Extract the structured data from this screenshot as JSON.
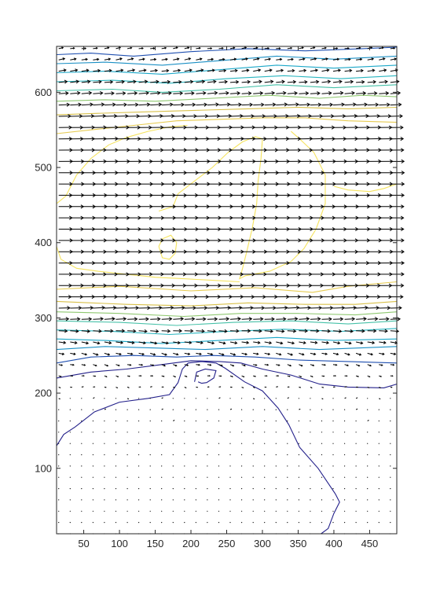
{
  "chart_data": {
    "type": "contour-quiver",
    "title": "",
    "xlabel": "",
    "ylabel": "",
    "xlim": [
      12,
      488
    ],
    "ylim": [
      13,
      661
    ],
    "x_ticks": [
      50,
      100,
      150,
      200,
      250,
      300,
      350,
      400,
      450
    ],
    "y_ticks": [
      100,
      200,
      300,
      400,
      500,
      600
    ],
    "x_tick_labels": [
      "50",
      "100",
      "150",
      "200",
      "250",
      "300",
      "350",
      "400",
      "450"
    ],
    "y_tick_labels": [
      "100",
      "200",
      "300",
      "400",
      "500",
      "600"
    ],
    "grid": false,
    "legend": "none",
    "colors": {
      "axes": "#262626",
      "arrows": "#000000",
      "contour_low": "#23208a",
      "contour_mid": "#1aa7c8",
      "contour_midhigh": "#46c1a8",
      "contour_high": "#d8c04a",
      "contour_top": "#f5e35e"
    },
    "contours": [
      {
        "level_rank": 1,
        "color": "#23208a",
        "points": [
          [
            12,
            130
          ],
          [
            22,
            145
          ],
          [
            38,
            155
          ],
          [
            65,
            175
          ],
          [
            100,
            188
          ],
          [
            140,
            193
          ],
          [
            170,
            198
          ],
          [
            182,
            214
          ],
          [
            188,
            232
          ],
          [
            196,
            240
          ],
          [
            215,
            242
          ],
          [
            235,
            240
          ],
          [
            248,
            233
          ],
          [
            275,
            215
          ],
          [
            300,
            203
          ],
          [
            322,
            180
          ],
          [
            337,
            158
          ],
          [
            352,
            128
          ],
          [
            378,
            100
          ],
          [
            402,
            66
          ],
          [
            408,
            55
          ],
          [
            400,
            40
          ],
          [
            392,
            20
          ],
          [
            382,
            13
          ]
        ]
      },
      {
        "level_rank": 1,
        "color": "#23208a",
        "points": [
          [
            205,
            215
          ],
          [
            208,
            228
          ],
          [
            220,
            232
          ],
          [
            235,
            230
          ],
          [
            232,
            220
          ],
          [
            222,
            214
          ],
          [
            215,
            213
          ],
          [
            210,
            215
          ]
        ]
      },
      {
        "level_rank": 1,
        "color": "#23208a",
        "points": [
          [
            12,
            220
          ],
          [
            60,
            228
          ],
          [
            110,
            232
          ],
          [
            160,
            238
          ],
          [
            200,
            243
          ],
          [
            240,
            242
          ],
          [
            270,
            240
          ],
          [
            300,
            232
          ],
          [
            340,
            224
          ],
          [
            380,
            212
          ],
          [
            420,
            208
          ],
          [
            470,
            207
          ],
          [
            488,
            212
          ]
        ]
      },
      {
        "level_rank": 2,
        "color": "#1f4fb0",
        "points": [
          [
            12,
            240
          ],
          [
            60,
            248
          ],
          [
            120,
            250
          ],
          [
            180,
            248
          ],
          [
            230,
            250
          ],
          [
            290,
            248
          ],
          [
            350,
            244
          ],
          [
            420,
            242
          ],
          [
            488,
            240
          ]
        ]
      },
      {
        "level_rank": 3,
        "color": "#1a8fc4",
        "points": [
          [
            12,
            258
          ],
          [
            80,
            262
          ],
          [
            150,
            260
          ],
          [
            220,
            258
          ],
          [
            300,
            262
          ],
          [
            380,
            258
          ],
          [
            488,
            262
          ]
        ]
      },
      {
        "level_rank": 4,
        "color": "#1aa7c8",
        "points": [
          [
            12,
            272
          ],
          [
            80,
            270
          ],
          [
            160,
            266
          ],
          [
            240,
            270
          ],
          [
            320,
            274
          ],
          [
            400,
            270
          ],
          [
            488,
            272
          ]
        ]
      },
      {
        "level_rank": 5,
        "color": "#2ab6c0",
        "points": [
          [
            12,
            284
          ],
          [
            90,
            282
          ],
          [
            170,
            278
          ],
          [
            250,
            282
          ],
          [
            330,
            285
          ],
          [
            410,
            282
          ],
          [
            488,
            286
          ]
        ]
      },
      {
        "level_rank": 6,
        "color": "#46c1a8",
        "points": [
          [
            12,
            296
          ],
          [
            100,
            294
          ],
          [
            180,
            290
          ],
          [
            260,
            294
          ],
          [
            340,
            296
          ],
          [
            420,
            292
          ],
          [
            488,
            296
          ]
        ]
      },
      {
        "level_rank": 7,
        "color": "#8fc870",
        "points": [
          [
            12,
            308
          ],
          [
            100,
            306
          ],
          [
            190,
            302
          ],
          [
            270,
            306
          ],
          [
            350,
            306
          ],
          [
            430,
            304
          ],
          [
            488,
            308
          ]
        ]
      },
      {
        "level_rank": 8,
        "color": "#d8c04a",
        "points": [
          [
            12,
            322
          ],
          [
            110,
            318
          ],
          [
            200,
            316
          ],
          [
            280,
            320
          ],
          [
            360,
            318
          ],
          [
            430,
            318
          ],
          [
            488,
            322
          ]
        ]
      },
      {
        "level_rank": 9,
        "color": "#e6cb52",
        "points": [
          [
            12,
            338
          ],
          [
            100,
            342
          ],
          [
            200,
            336
          ],
          [
            290,
            340
          ],
          [
            370,
            334
          ],
          [
            420,
            342
          ],
          [
            488,
            348
          ]
        ]
      },
      {
        "level_rank": 10,
        "color": "#f5e35e",
        "points": [
          [
            12,
            452
          ],
          [
            25,
            462
          ],
          [
            40,
            490
          ],
          [
            60,
            512
          ],
          [
            85,
            530
          ],
          [
            110,
            540
          ],
          [
            140,
            548
          ],
          [
            170,
            554
          ],
          [
            195,
            556
          ]
        ]
      },
      {
        "level_rank": 10,
        "color": "#f5e35e",
        "points": [
          [
            155,
            442
          ],
          [
            175,
            448
          ],
          [
            182,
            465
          ],
          [
            205,
            482
          ],
          [
            230,
            500
          ],
          [
            252,
            520
          ],
          [
            272,
            534
          ],
          [
            290,
            541
          ],
          [
            300,
            538
          ],
          [
            298,
            512
          ],
          [
            294,
            482
          ],
          [
            292,
            452
          ],
          [
            286,
            420
          ],
          [
            278,
            388
          ],
          [
            272,
            365
          ],
          [
            268,
            352
          ],
          [
            276,
            356
          ],
          [
            310,
            362
          ],
          [
            340,
            375
          ],
          [
            358,
            392
          ],
          [
            375,
            418
          ],
          [
            388,
            452
          ],
          [
            388,
            490
          ],
          [
            372,
            520
          ],
          [
            352,
            538
          ],
          [
            340,
            548
          ]
        ]
      },
      {
        "level_rank": 10,
        "color": "#f5e35e",
        "points": [
          [
            155,
            395
          ],
          [
            160,
            405
          ],
          [
            172,
            410
          ],
          [
            180,
            400
          ],
          [
            178,
            386
          ],
          [
            170,
            378
          ],
          [
            160,
            380
          ],
          [
            155,
            395
          ]
        ]
      },
      {
        "level_rank": 10,
        "color": "#f5e35e",
        "points": [
          [
            12,
            395
          ],
          [
            18,
            378
          ],
          [
            40,
            366
          ],
          [
            70,
            362
          ],
          [
            110,
            358
          ],
          [
            150,
            354
          ],
          [
            190,
            352
          ],
          [
            230,
            350
          ],
          [
            268,
            348
          ]
        ]
      },
      {
        "level_rank": 10,
        "color": "#f5e35e",
        "points": [
          [
            400,
            475
          ],
          [
            420,
            470
          ],
          [
            450,
            468
          ],
          [
            470,
            472
          ],
          [
            488,
            478
          ]
        ]
      },
      {
        "level_rank": 9,
        "color": "#e6cb52",
        "points": [
          [
            12,
            545
          ],
          [
            60,
            550
          ],
          [
            120,
            556
          ],
          [
            180,
            562
          ],
          [
            240,
            564
          ],
          [
            300,
            566
          ],
          [
            360,
            566
          ],
          [
            420,
            562
          ],
          [
            488,
            560
          ]
        ]
      },
      {
        "level_rank": 8,
        "color": "#d8c04a",
        "points": [
          [
            12,
            570
          ],
          [
            70,
            572
          ],
          [
            140,
            574
          ],
          [
            210,
            576
          ],
          [
            280,
            578
          ],
          [
            350,
            580
          ],
          [
            420,
            578
          ],
          [
            488,
            580
          ]
        ]
      },
      {
        "level_rank": 7,
        "color": "#8fc870",
        "points": [
          [
            12,
            588
          ],
          [
            80,
            590
          ],
          [
            150,
            588
          ],
          [
            230,
            592
          ],
          [
            310,
            596
          ],
          [
            380,
            592
          ],
          [
            440,
            596
          ],
          [
            488,
            594
          ]
        ]
      },
      {
        "level_rank": 6,
        "color": "#46c1a8",
        "points": [
          [
            12,
            602
          ],
          [
            90,
            604
          ],
          [
            160,
            600
          ],
          [
            240,
            604
          ],
          [
            320,
            610
          ],
          [
            400,
            606
          ],
          [
            488,
            610
          ]
        ]
      },
      {
        "level_rank": 5,
        "color": "#2ab6c0",
        "points": [
          [
            12,
            614
          ],
          [
            90,
            616
          ],
          [
            170,
            612
          ],
          [
            250,
            618
          ],
          [
            330,
            622
          ],
          [
            410,
            618
          ],
          [
            488,
            622
          ]
        ]
      },
      {
        "level_rank": 4,
        "color": "#1aa7c8",
        "points": [
          [
            12,
            626
          ],
          [
            80,
            628
          ],
          [
            160,
            624
          ],
          [
            240,
            630
          ],
          [
            320,
            636
          ],
          [
            400,
            632
          ],
          [
            488,
            636
          ]
        ]
      },
      {
        "level_rank": 3,
        "color": "#1a8fc4",
        "points": [
          [
            12,
            638
          ],
          [
            80,
            640
          ],
          [
            160,
            636
          ],
          [
            240,
            642
          ],
          [
            320,
            648
          ],
          [
            400,
            644
          ],
          [
            488,
            648
          ]
        ]
      },
      {
        "level_rank": 2,
        "color": "#1f4fb0",
        "points": [
          [
            12,
            650
          ],
          [
            60,
            652
          ],
          [
            120,
            648
          ],
          [
            200,
            654
          ],
          [
            280,
            658
          ],
          [
            360,
            655
          ],
          [
            440,
            658
          ],
          [
            488,
            660
          ]
        ]
      }
    ],
    "quiver": {
      "x_start": 15,
      "x_step": 16,
      "y_start": 13,
      "y_step": 15,
      "max_length_data": 14,
      "profile": [
        {
          "y": 13,
          "u": 0.05,
          "v": 0.0
        },
        {
          "y": 200,
          "u": 0.08,
          "v": 0.0
        },
        {
          "y": 230,
          "u": 0.2,
          "v": -0.05
        },
        {
          "y": 250,
          "u": 0.35,
          "v": -0.1
        },
        {
          "y": 275,
          "u": 0.55,
          "v": -0.08
        },
        {
          "y": 300,
          "u": 0.75,
          "v": 0.05
        },
        {
          "y": 330,
          "u": 0.95,
          "v": 0.0
        },
        {
          "y": 400,
          "u": 1.0,
          "v": 0.0
        },
        {
          "y": 500,
          "u": 1.0,
          "v": 0.0
        },
        {
          "y": 560,
          "u": 0.95,
          "v": 0.02
        },
        {
          "y": 600,
          "u": 0.7,
          "v": 0.06
        },
        {
          "y": 640,
          "u": 0.45,
          "v": 0.08
        },
        {
          "y": 661,
          "u": 0.3,
          "v": 0.05
        }
      ]
    }
  }
}
